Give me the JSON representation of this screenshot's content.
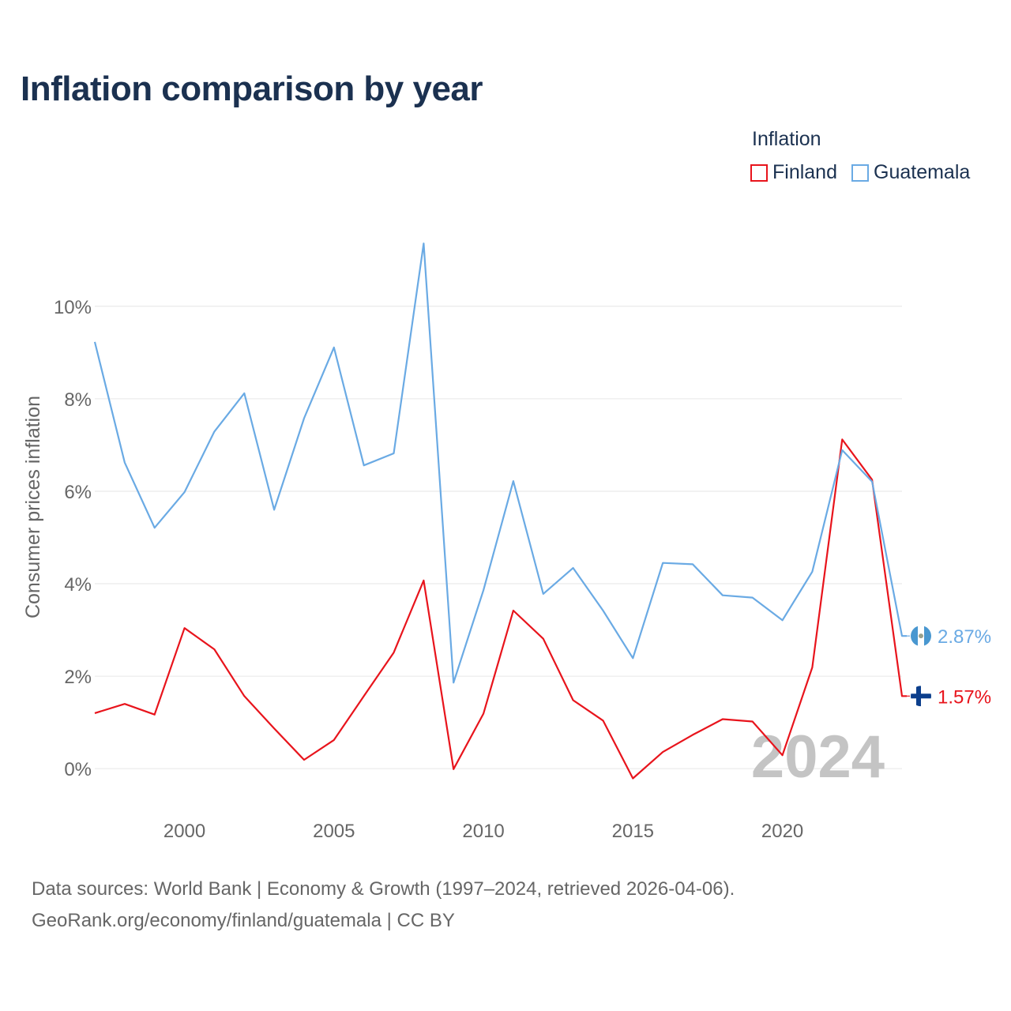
{
  "title": "Inflation comparison by year",
  "legend": {
    "title": "Inflation",
    "items": [
      {
        "label": "Finland",
        "color": "#e8141c"
      },
      {
        "label": "Guatemala",
        "color": "#6aaae4"
      }
    ]
  },
  "year_watermark": "2024",
  "sources": {
    "line1": "Data sources: World Bank | Economy & Growth (1997–2024, retrieved 2026-04-06).",
    "line2": "GeoRank.org/economy/finland/guatemala | CC BY"
  },
  "chart_data": {
    "type": "line",
    "title": "Inflation comparison by year",
    "xlabel": "",
    "ylabel": "Consumer prices inflation",
    "xlim": [
      1997,
      2024
    ],
    "ylim": [
      -0.8,
      11.5
    ],
    "x": [
      1997,
      1998,
      1999,
      2000,
      2001,
      2002,
      2003,
      2004,
      2005,
      2006,
      2007,
      2008,
      2009,
      2010,
      2011,
      2012,
      2013,
      2014,
      2015,
      2016,
      2017,
      2018,
      2019,
      2020,
      2021,
      2022,
      2023,
      2024
    ],
    "x_ticks": [
      2000,
      2005,
      2010,
      2015,
      2020
    ],
    "x_tick_labels": [
      "2000",
      "2005",
      "2010",
      "2015",
      "2020"
    ],
    "y_ticks": [
      0,
      2,
      4,
      6,
      8,
      10
    ],
    "y_tick_labels": [
      "0%",
      "2%",
      "4%",
      "6%",
      "8%",
      "10%"
    ],
    "grid": true,
    "series": [
      {
        "name": "Finland",
        "color": "#e8141c",
        "values": [
          1.2,
          1.4,
          1.17,
          3.04,
          2.58,
          1.57,
          0.87,
          0.19,
          0.62,
          1.57,
          2.51,
          4.07,
          -0.01,
          1.19,
          3.42,
          2.81,
          1.48,
          1.04,
          -0.21,
          0.36,
          0.73,
          1.07,
          1.02,
          0.29,
          2.19,
          7.12,
          6.25,
          1.57
        ],
        "end_label": "1.57%"
      },
      {
        "name": "Guatemala",
        "color": "#6aaae4",
        "values": [
          9.23,
          6.62,
          5.21,
          5.98,
          7.29,
          8.12,
          5.6,
          7.58,
          9.11,
          6.56,
          6.82,
          11.36,
          1.86,
          3.86,
          6.22,
          3.78,
          4.34,
          3.42,
          2.39,
          4.45,
          4.42,
          3.75,
          3.7,
          3.21,
          4.26,
          6.89,
          6.21,
          2.87
        ],
        "end_label": "2.87%"
      }
    ]
  }
}
